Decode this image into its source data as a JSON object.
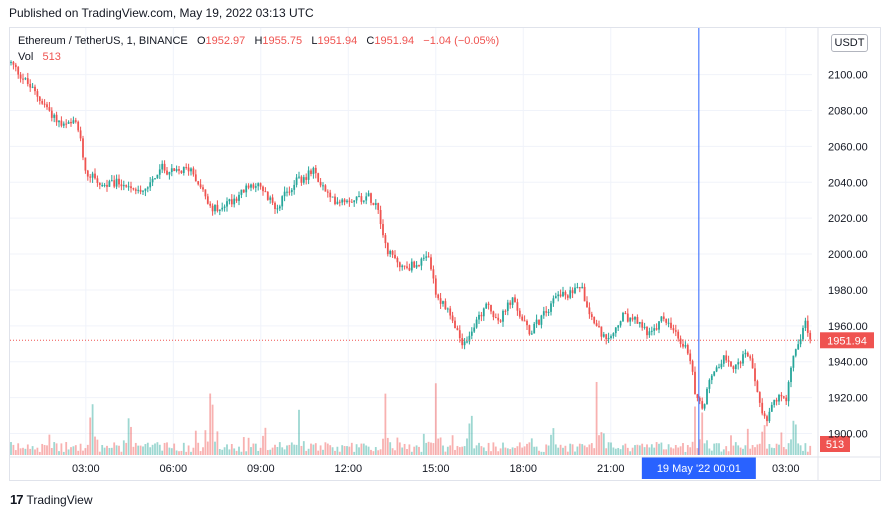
{
  "header": {
    "published": "Published on TradingView.com, May 19, 2022 03:13 UTC"
  },
  "legend": {
    "symbol": "Ethereum / TetherUS, 1, BINANCE",
    "o_label": "O",
    "o_value": "1952.97",
    "h_label": "H",
    "h_value": "1955.75",
    "l_label": "L",
    "l_value": "1951.94",
    "c_label": "C",
    "c_value": "1951.94",
    "change": "−1.04 (−0.05%)",
    "vol_label": "Vol",
    "vol_value": "513"
  },
  "currency_button": "USDT",
  "crosshair_label": "19 May '22   00:01",
  "last_price_label": "1951.94",
  "volume_label": "513",
  "footer_logo": "TradingView",
  "colors": {
    "up": "#26a69a",
    "down": "#ef5350",
    "crosshair": "#2962ff",
    "last_price": "#ef5350",
    "grid": "#f0f3fa"
  },
  "chart_data": {
    "type": "candlestick",
    "interval_minutes": 1,
    "y_ticks": [
      1900,
      1920,
      1940,
      1960,
      1980,
      2000,
      2020,
      2040,
      2060,
      2080,
      2100
    ],
    "y_tick_labels": [
      "1900.00",
      "1920.00",
      "1940.00",
      "1960.00",
      "1980.00",
      "2000.00",
      "2020.00",
      "2040.00",
      "2060.00",
      "2080.00",
      "2100.00"
    ],
    "ylim": [
      1888,
      2126
    ],
    "x_ticks": [
      "03:00",
      "06:00",
      "09:00",
      "12:00",
      "15:00",
      "18:00",
      "21:00",
      "03:00"
    ],
    "x_tick_hours": [
      3,
      6,
      9,
      12,
      15,
      18,
      21,
      27
    ],
    "x_range_hours": [
      0.4,
      27.9
    ],
    "crosshair_hour": 24.02,
    "last_price": 1951.94,
    "price_path": [
      {
        "t": 0.4,
        "p": 2107
      },
      {
        "t": 1.0,
        "p": 2095
      },
      {
        "t": 1.6,
        "p": 2083
      },
      {
        "t": 2.2,
        "p": 2071
      },
      {
        "t": 2.7,
        "p": 2073
      },
      {
        "t": 3.0,
        "p": 2046
      },
      {
        "t": 3.6,
        "p": 2038
      },
      {
        "t": 4.2,
        "p": 2040
      },
      {
        "t": 5.0,
        "p": 2036
      },
      {
        "t": 5.6,
        "p": 2048
      },
      {
        "t": 6.0,
        "p": 2045
      },
      {
        "t": 6.6,
        "p": 2048
      },
      {
        "t": 7.0,
        "p": 2036
      },
      {
        "t": 7.3,
        "p": 2024
      },
      {
        "t": 8.0,
        "p": 2030
      },
      {
        "t": 8.8,
        "p": 2040
      },
      {
        "t": 9.5,
        "p": 2026
      },
      {
        "t": 10.2,
        "p": 2040
      },
      {
        "t": 10.8,
        "p": 2046
      },
      {
        "t": 11.4,
        "p": 2030
      },
      {
        "t": 12.2,
        "p": 2031
      },
      {
        "t": 12.7,
        "p": 2032
      },
      {
        "t": 13.0,
        "p": 2028
      },
      {
        "t": 13.3,
        "p": 2002
      },
      {
        "t": 13.9,
        "p": 1992
      },
      {
        "t": 14.4,
        "p": 1995
      },
      {
        "t": 14.8,
        "p": 1997
      },
      {
        "t": 15.0,
        "p": 1978
      },
      {
        "t": 15.5,
        "p": 1965
      },
      {
        "t": 15.9,
        "p": 1950
      },
      {
        "t": 16.3,
        "p": 1958
      },
      {
        "t": 16.7,
        "p": 1972
      },
      {
        "t": 17.2,
        "p": 1963
      },
      {
        "t": 17.6,
        "p": 1975
      },
      {
        "t": 18.2,
        "p": 1956
      },
      {
        "t": 18.8,
        "p": 1968
      },
      {
        "t": 19.2,
        "p": 1980
      },
      {
        "t": 19.5,
        "p": 1975
      },
      {
        "t": 19.9,
        "p": 1985
      },
      {
        "t": 20.4,
        "p": 1963
      },
      {
        "t": 20.9,
        "p": 1950
      },
      {
        "t": 21.4,
        "p": 1965
      },
      {
        "t": 21.9,
        "p": 1962
      },
      {
        "t": 22.4,
        "p": 1955
      },
      {
        "t": 22.8,
        "p": 1965
      },
      {
        "t": 23.3,
        "p": 1953
      },
      {
        "t": 23.7,
        "p": 1945
      },
      {
        "t": 23.9,
        "p": 1921
      },
      {
        "t": 24.15,
        "p": 1914
      },
      {
        "t": 24.5,
        "p": 1935
      },
      {
        "t": 24.9,
        "p": 1942
      },
      {
        "t": 25.3,
        "p": 1937
      },
      {
        "t": 25.7,
        "p": 1945
      },
      {
        "t": 26.0,
        "p": 1925
      },
      {
        "t": 26.3,
        "p": 1907
      },
      {
        "t": 26.7,
        "p": 1920
      },
      {
        "t": 27.0,
        "p": 1917
      },
      {
        "t": 27.3,
        "p": 1948
      },
      {
        "t": 27.55,
        "p": 1952
      },
      {
        "t": 27.65,
        "p": 1963
      },
      {
        "t": 27.9,
        "p": 1951.94
      }
    ],
    "volume_spikes": [
      {
        "t": 3.2,
        "v": 0.75
      },
      {
        "t": 4.5,
        "v": 0.55
      },
      {
        "t": 7.3,
        "v": 0.95
      },
      {
        "t": 10.3,
        "v": 0.5
      },
      {
        "t": 13.3,
        "v": 0.85
      },
      {
        "t": 15.0,
        "v": 0.72
      },
      {
        "t": 16.2,
        "v": 0.6
      },
      {
        "t": 19.0,
        "v": 0.4
      },
      {
        "t": 20.5,
        "v": 0.85
      },
      {
        "t": 23.9,
        "v": 0.55
      },
      {
        "t": 24.15,
        "v": 0.5
      },
      {
        "t": 26.3,
        "v": 0.4
      },
      {
        "t": 27.3,
        "v": 0.55
      }
    ]
  }
}
